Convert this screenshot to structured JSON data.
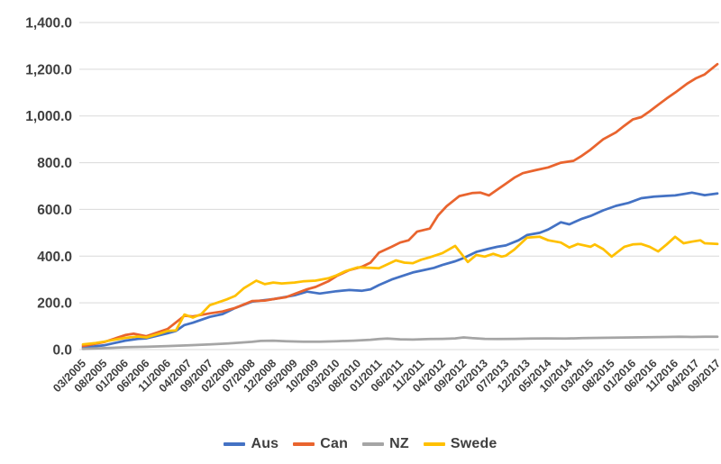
{
  "chart_data": {
    "type": "line",
    "title": "",
    "xlabel": "",
    "ylabel": "",
    "background_color": "#FFFFFF",
    "gridline_color": "#D9D9D9",
    "axis_text_color": "#3F3F3F",
    "grid": true,
    "legend_position": "bottom",
    "x_axis": {
      "unit": "month/year",
      "tick_interval_months": 5,
      "tick_labels": [
        "03/2005",
        "08/2005",
        "01/2006",
        "06/2006",
        "11/2006",
        "04/2007",
        "09/2007",
        "02/2008",
        "07/2008",
        "12/2008",
        "05/2009",
        "10/2009",
        "03/2010",
        "08/2010",
        "01/2011",
        "06/2011",
        "11/2011",
        "04/2012",
        "09/2012",
        "02/2013",
        "07/2013",
        "12/2013",
        "05/2014",
        "10/2014",
        "03/2015",
        "08/2015",
        "01/2016",
        "06/2016",
        "11/2016",
        "04/2017",
        "09/2017"
      ]
    },
    "y_axis": {
      "min": 0,
      "max": 1400,
      "tick_step": 200,
      "tick_labels": [
        "0.0",
        "200.0",
        "400.0",
        "600.0",
        "800.0",
        "1,000.0",
        "1,200.0",
        "1,400.0"
      ]
    },
    "series": [
      {
        "name": "Aus",
        "color": "#4472C4",
        "points": [
          [
            0,
            8
          ],
          [
            5,
            18
          ],
          [
            10,
            38
          ],
          [
            13,
            46
          ],
          [
            15,
            48
          ],
          [
            20,
            70
          ],
          [
            22,
            80
          ],
          [
            24,
            105
          ],
          [
            26,
            115
          ],
          [
            30,
            140
          ],
          [
            33,
            152
          ],
          [
            36,
            178
          ],
          [
            40,
            205
          ],
          [
            45,
            216
          ],
          [
            50,
            232
          ],
          [
            53,
            248
          ],
          [
            56,
            240
          ],
          [
            60,
            250
          ],
          [
            63,
            255
          ],
          [
            66,
            252
          ],
          [
            68,
            258
          ],
          [
            70,
            276
          ],
          [
            73,
            300
          ],
          [
            75,
            312
          ],
          [
            78,
            330
          ],
          [
            80,
            338
          ],
          [
            83,
            350
          ],
          [
            85,
            362
          ],
          [
            88,
            378
          ],
          [
            90,
            392
          ],
          [
            93,
            418
          ],
          [
            96,
            432
          ],
          [
            98,
            440
          ],
          [
            100,
            446
          ],
          [
            103,
            468
          ],
          [
            105,
            490
          ],
          [
            108,
            500
          ],
          [
            110,
            514
          ],
          [
            113,
            545
          ],
          [
            115,
            536
          ],
          [
            118,
            560
          ],
          [
            120,
            572
          ],
          [
            123,
            596
          ],
          [
            126,
            615
          ],
          [
            129,
            628
          ],
          [
            132,
            648
          ],
          [
            135,
            655
          ],
          [
            138,
            658
          ],
          [
            140,
            660
          ],
          [
            144,
            672
          ],
          [
            147,
            661
          ],
          [
            150,
            668
          ]
        ]
      },
      {
        "name": "Can",
        "color": "#E9642E",
        "points": [
          [
            0,
            15
          ],
          [
            5,
            32
          ],
          [
            10,
            62
          ],
          [
            12,
            68
          ],
          [
            15,
            57
          ],
          [
            20,
            88
          ],
          [
            24,
            145
          ],
          [
            26,
            142
          ],
          [
            30,
            155
          ],
          [
            33,
            163
          ],
          [
            36,
            178
          ],
          [
            40,
            208
          ],
          [
            43,
            210
          ],
          [
            45,
            216
          ],
          [
            48,
            224
          ],
          [
            50,
            238
          ],
          [
            53,
            258
          ],
          [
            55,
            268
          ],
          [
            58,
            292
          ],
          [
            60,
            315
          ],
          [
            63,
            340
          ],
          [
            66,
            355
          ],
          [
            68,
            372
          ],
          [
            70,
            415
          ],
          [
            73,
            440
          ],
          [
            75,
            458
          ],
          [
            77,
            468
          ],
          [
            79,
            505
          ],
          [
            82,
            518
          ],
          [
            84,
            575
          ],
          [
            86,
            614
          ],
          [
            89,
            657
          ],
          [
            92,
            670
          ],
          [
            94,
            672
          ],
          [
            96,
            660
          ],
          [
            98,
            685
          ],
          [
            100,
            710
          ],
          [
            102,
            736
          ],
          [
            104,
            755
          ],
          [
            107,
            768
          ],
          [
            110,
            780
          ],
          [
            113,
            800
          ],
          [
            116,
            808
          ],
          [
            118,
            830
          ],
          [
            120,
            856
          ],
          [
            123,
            900
          ],
          [
            126,
            930
          ],
          [
            128,
            958
          ],
          [
            130,
            985
          ],
          [
            132,
            995
          ],
          [
            134,
            1020
          ],
          [
            136,
            1048
          ],
          [
            138,
            1075
          ],
          [
            140,
            1100
          ],
          [
            143,
            1140
          ],
          [
            145,
            1162
          ],
          [
            147,
            1178
          ],
          [
            150,
            1222
          ]
        ]
      },
      {
        "name": "NZ",
        "color": "#A5A5A5",
        "points": [
          [
            0,
            3
          ],
          [
            5,
            6
          ],
          [
            10,
            10
          ],
          [
            15,
            12
          ],
          [
            20,
            15
          ],
          [
            25,
            18
          ],
          [
            30,
            22
          ],
          [
            35,
            27
          ],
          [
            40,
            33
          ],
          [
            42,
            37
          ],
          [
            45,
            38
          ],
          [
            48,
            36
          ],
          [
            52,
            34
          ],
          [
            56,
            34
          ],
          [
            60,
            36
          ],
          [
            64,
            38
          ],
          [
            68,
            42
          ],
          [
            70,
            45
          ],
          [
            72,
            47
          ],
          [
            75,
            44
          ],
          [
            78,
            43
          ],
          [
            82,
            45
          ],
          [
            85,
            46
          ],
          [
            88,
            48
          ],
          [
            90,
            52
          ],
          [
            92,
            49
          ],
          [
            95,
            46
          ],
          [
            98,
            45
          ],
          [
            102,
            46
          ],
          [
            106,
            47
          ],
          [
            110,
            48
          ],
          [
            114,
            47
          ],
          [
            118,
            49
          ],
          [
            122,
            50
          ],
          [
            126,
            51
          ],
          [
            130,
            52
          ],
          [
            134,
            53
          ],
          [
            138,
            54
          ],
          [
            141,
            55
          ],
          [
            144,
            54
          ],
          [
            147,
            55
          ],
          [
            150,
            55
          ]
        ]
      },
      {
        "name": "Swede",
        "color": "#FFC000",
        "points": [
          [
            0,
            22
          ],
          [
            3,
            28
          ],
          [
            5,
            34
          ],
          [
            8,
            44
          ],
          [
            10,
            50
          ],
          [
            13,
            56
          ],
          [
            15,
            52
          ],
          [
            18,
            68
          ],
          [
            20,
            80
          ],
          [
            22,
            82
          ],
          [
            24,
            150
          ],
          [
            26,
            137
          ],
          [
            28,
            152
          ],
          [
            30,
            190
          ],
          [
            32,
            202
          ],
          [
            34,
            215
          ],
          [
            36,
            230
          ],
          [
            38,
            262
          ],
          [
            41,
            295
          ],
          [
            43,
            280
          ],
          [
            45,
            287
          ],
          [
            47,
            283
          ],
          [
            50,
            287
          ],
          [
            52,
            292
          ],
          [
            55,
            295
          ],
          [
            58,
            305
          ],
          [
            60,
            318
          ],
          [
            62,
            335
          ],
          [
            65,
            352
          ],
          [
            68,
            350
          ],
          [
            70,
            348
          ],
          [
            72,
            365
          ],
          [
            74,
            382
          ],
          [
            76,
            372
          ],
          [
            78,
            370
          ],
          [
            80,
            385
          ],
          [
            82,
            395
          ],
          [
            85,
            413
          ],
          [
            88,
            444
          ],
          [
            91,
            375
          ],
          [
            93,
            405
          ],
          [
            95,
            398
          ],
          [
            97,
            410
          ],
          [
            99,
            398
          ],
          [
            100,
            402
          ],
          [
            102,
            428
          ],
          [
            105,
            479
          ],
          [
            108,
            483
          ],
          [
            110,
            468
          ],
          [
            113,
            458
          ],
          [
            115,
            437
          ],
          [
            117,
            452
          ],
          [
            120,
            440
          ],
          [
            121,
            450
          ],
          [
            123,
            430
          ],
          [
            125,
            398
          ],
          [
            128,
            440
          ],
          [
            130,
            450
          ],
          [
            132,
            452
          ],
          [
            134,
            440
          ],
          [
            136,
            420
          ],
          [
            138,
            450
          ],
          [
            140,
            483
          ],
          [
            142,
            455
          ],
          [
            144,
            462
          ],
          [
            146,
            468
          ],
          [
            147,
            455
          ],
          [
            150,
            452
          ]
        ]
      }
    ]
  }
}
